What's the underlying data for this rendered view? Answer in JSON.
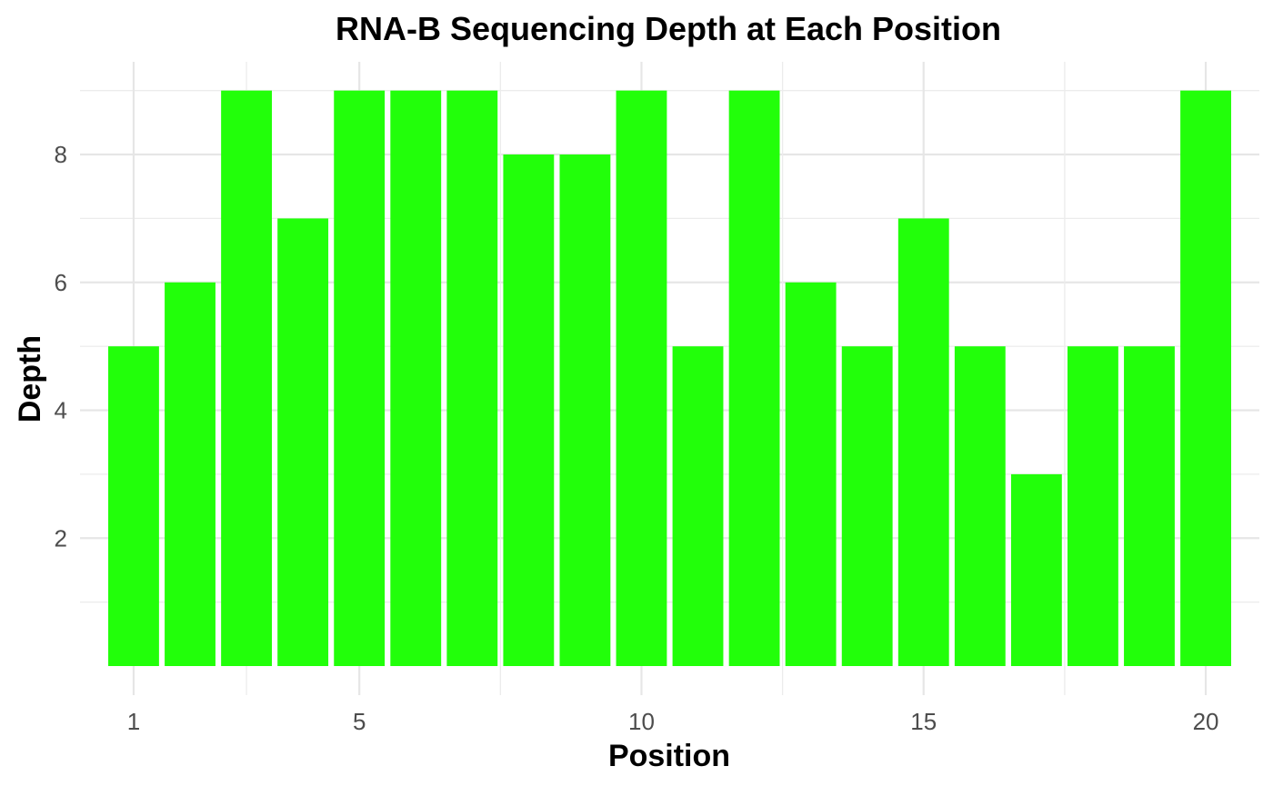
{
  "chart_data": {
    "type": "bar",
    "title": "RNA-B Sequencing Depth at Each Position",
    "xlabel": "Position",
    "ylabel": "Depth",
    "bar_color": "#22ff0a",
    "grid": true,
    "legend": "none",
    "x": [
      1,
      2,
      3,
      4,
      5,
      6,
      7,
      8,
      9,
      10,
      11,
      12,
      13,
      14,
      15,
      16,
      17,
      18,
      19,
      20
    ],
    "values": [
      5,
      6,
      9,
      7,
      9,
      9,
      9,
      8,
      8,
      9,
      5,
      9,
      6,
      5,
      7,
      5,
      3,
      5,
      5,
      9
    ],
    "x_ticks": [
      1,
      5,
      10,
      15,
      20
    ],
    "y_ticks": [
      2,
      4,
      6,
      8
    ],
    "xlim": [
      0.05,
      20.95
    ],
    "ylim": [
      0,
      9.45
    ]
  }
}
